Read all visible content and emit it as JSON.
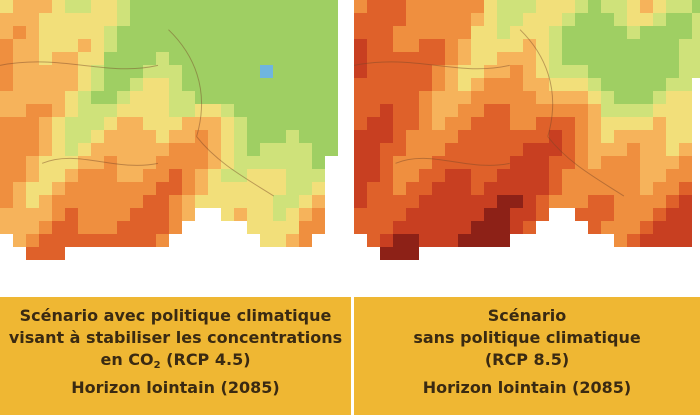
{
  "panels": [
    {
      "id": "left",
      "scenario_lines": [
        "Scénario avec politique climatique",
        "visant à stabiliser les concentrations",
        "en CO",
        "2",
        " (RCP 4.5)"
      ],
      "horizon": "Horizon lointain (2085)"
    },
    {
      "id": "right",
      "scenario_lines": [
        "Scénario",
        "sans politique climatique",
        "(RCP 8.5)"
      ],
      "horizon": "Horizon lointain (2085)"
    }
  ],
  "colors": {
    "caption_bg": "#efb733",
    "caption_text": "#3a2a12",
    "dark_red": "#8d2117",
    "red": "#c83f21",
    "orange_red": "#df612a",
    "orange": "#ef8f3f",
    "light_orange": "#f6b35b",
    "pale_yellow": "#f2df7a",
    "yellow_green": "#cfe27a",
    "green": "#9fcf63",
    "blue": "#6fb5df"
  }
}
